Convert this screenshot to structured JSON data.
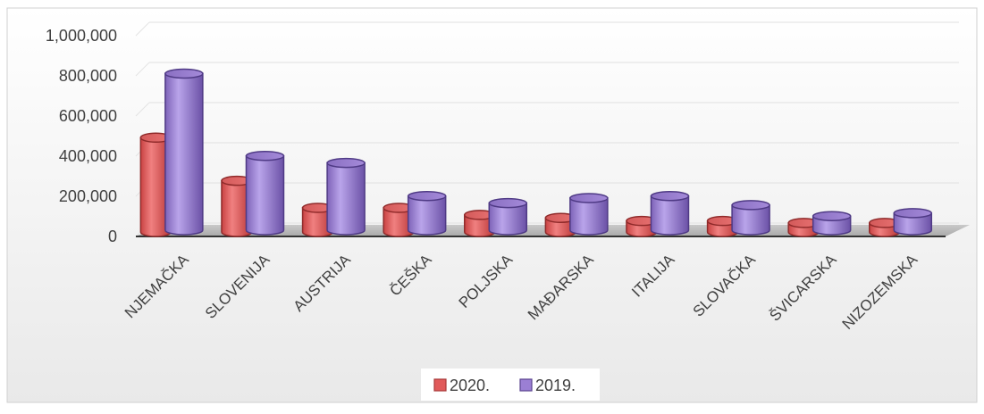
{
  "chart_data": {
    "type": "bar",
    "subtype": "3d-cylinder-clustered",
    "title": "",
    "xlabel": "",
    "ylabel": "",
    "categories": [
      "NJEMAČKA",
      "SLOVENIJA",
      "AUSTRIJA",
      "ČEŠKA",
      "POLJSKA",
      "MAĐARSKA",
      "ITALIJA",
      "SLOVAČKA",
      "ŠVICARSKA",
      "NIZOZEMSKA"
    ],
    "series": [
      {
        "name": "2020.",
        "color": "#e15a5a",
        "values": [
          470000,
          255000,
          120000,
          120000,
          85000,
          70000,
          55000,
          55000,
          45000,
          45000
        ]
      },
      {
        "name": "2019.",
        "color": "#9b7fd4",
        "values": [
          780000,
          370000,
          335000,
          170000,
          135000,
          160000,
          170000,
          125000,
          70000,
          85000
        ]
      }
    ],
    "ylim": [
      0,
      1000000
    ],
    "yticks": [
      "1,000,000",
      "800,000",
      "600,000",
      "400,000",
      "200,000",
      "0"
    ],
    "grid": true,
    "legend": "bottom"
  }
}
